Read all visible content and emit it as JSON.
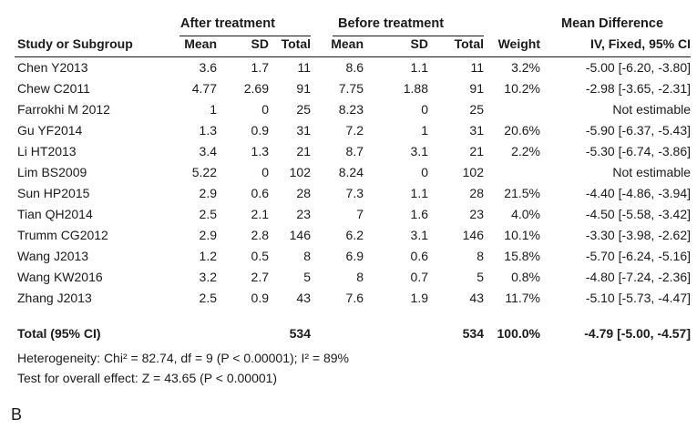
{
  "groups": {
    "after": "After treatment",
    "before": "Before treatment",
    "md": "Mean Difference"
  },
  "headers": {
    "study": "Study or Subgroup",
    "mean1": "Mean",
    "sd1": "SD",
    "total1": "Total",
    "mean2": "Mean",
    "sd2": "SD",
    "total2": "Total",
    "weight": "Weight",
    "ci": "IV, Fixed, 95% CI"
  },
  "rows": [
    {
      "study": "Chen Y2013",
      "mean1": "3.6",
      "sd1": "1.7",
      "total1": "11",
      "mean2": "8.6",
      "sd2": "1.1",
      "total2": "11",
      "weight": "3.2%",
      "ci": "-5.00 [-6.20, -3.80]"
    },
    {
      "study": "Chew C2011",
      "mean1": "4.77",
      "sd1": "2.69",
      "total1": "91",
      "mean2": "7.75",
      "sd2": "1.88",
      "total2": "91",
      "weight": "10.2%",
      "ci": "-2.98 [-3.65, -2.31]"
    },
    {
      "study": "Farrokhi M 2012",
      "mean1": "1",
      "sd1": "0",
      "total1": "25",
      "mean2": "8.23",
      "sd2": "0",
      "total2": "25",
      "weight": "",
      "ci": "Not estimable"
    },
    {
      "study": "Gu YF2014",
      "mean1": "1.3",
      "sd1": "0.9",
      "total1": "31",
      "mean2": "7.2",
      "sd2": "1",
      "total2": "31",
      "weight": "20.6%",
      "ci": "-5.90 [-6.37, -5.43]"
    },
    {
      "study": "Li HT2013",
      "mean1": "3.4",
      "sd1": "1.3",
      "total1": "21",
      "mean2": "8.7",
      "sd2": "3.1",
      "total2": "21",
      "weight": "2.2%",
      "ci": "-5.30 [-6.74, -3.86]"
    },
    {
      "study": "Lim BS2009",
      "mean1": "5.22",
      "sd1": "0",
      "total1": "102",
      "mean2": "8.24",
      "sd2": "0",
      "total2": "102",
      "weight": "",
      "ci": "Not estimable"
    },
    {
      "study": "Sun HP2015",
      "mean1": "2.9",
      "sd1": "0.6",
      "total1": "28",
      "mean2": "7.3",
      "sd2": "1.1",
      "total2": "28",
      "weight": "21.5%",
      "ci": "-4.40 [-4.86, -3.94]"
    },
    {
      "study": "Tian QH2014",
      "mean1": "2.5",
      "sd1": "2.1",
      "total1": "23",
      "mean2": "7",
      "sd2": "1.6",
      "total2": "23",
      "weight": "4.0%",
      "ci": "-4.50 [-5.58, -3.42]"
    },
    {
      "study": "Trumm CG2012",
      "mean1": "2.9",
      "sd1": "2.8",
      "total1": "146",
      "mean2": "6.2",
      "sd2": "3.1",
      "total2": "146",
      "weight": "10.1%",
      "ci": "-3.30 [-3.98, -2.62]"
    },
    {
      "study": "Wang J2013",
      "mean1": "1.2",
      "sd1": "0.5",
      "total1": "8",
      "mean2": "6.9",
      "sd2": "0.6",
      "total2": "8",
      "weight": "15.8%",
      "ci": "-5.70 [-6.24, -5.16]"
    },
    {
      "study": "Wang KW2016",
      "mean1": "3.2",
      "sd1": "2.7",
      "total1": "5",
      "mean2": "8",
      "sd2": "0.7",
      "total2": "5",
      "weight": "0.8%",
      "ci": "-4.80 [-7.24, -2.36]"
    },
    {
      "study": "Zhang J2013",
      "mean1": "2.5",
      "sd1": "0.9",
      "total1": "43",
      "mean2": "7.6",
      "sd2": "1.9",
      "total2": "43",
      "weight": "11.7%",
      "ci": "-5.10 [-5.73, -4.47]"
    }
  ],
  "total": {
    "label": "Total (95% CI)",
    "total1": "534",
    "total2": "534",
    "weight": "100.0%",
    "ci": "-4.79 [-5.00, -4.57]"
  },
  "heterogeneity": "Heterogeneity: Chi² = 82.74, df = 9 (P < 0.00001); I² = 89%",
  "overall_effect": "Test for overall effect: Z = 43.65 (P < 0.00001)",
  "panel_label": "B"
}
